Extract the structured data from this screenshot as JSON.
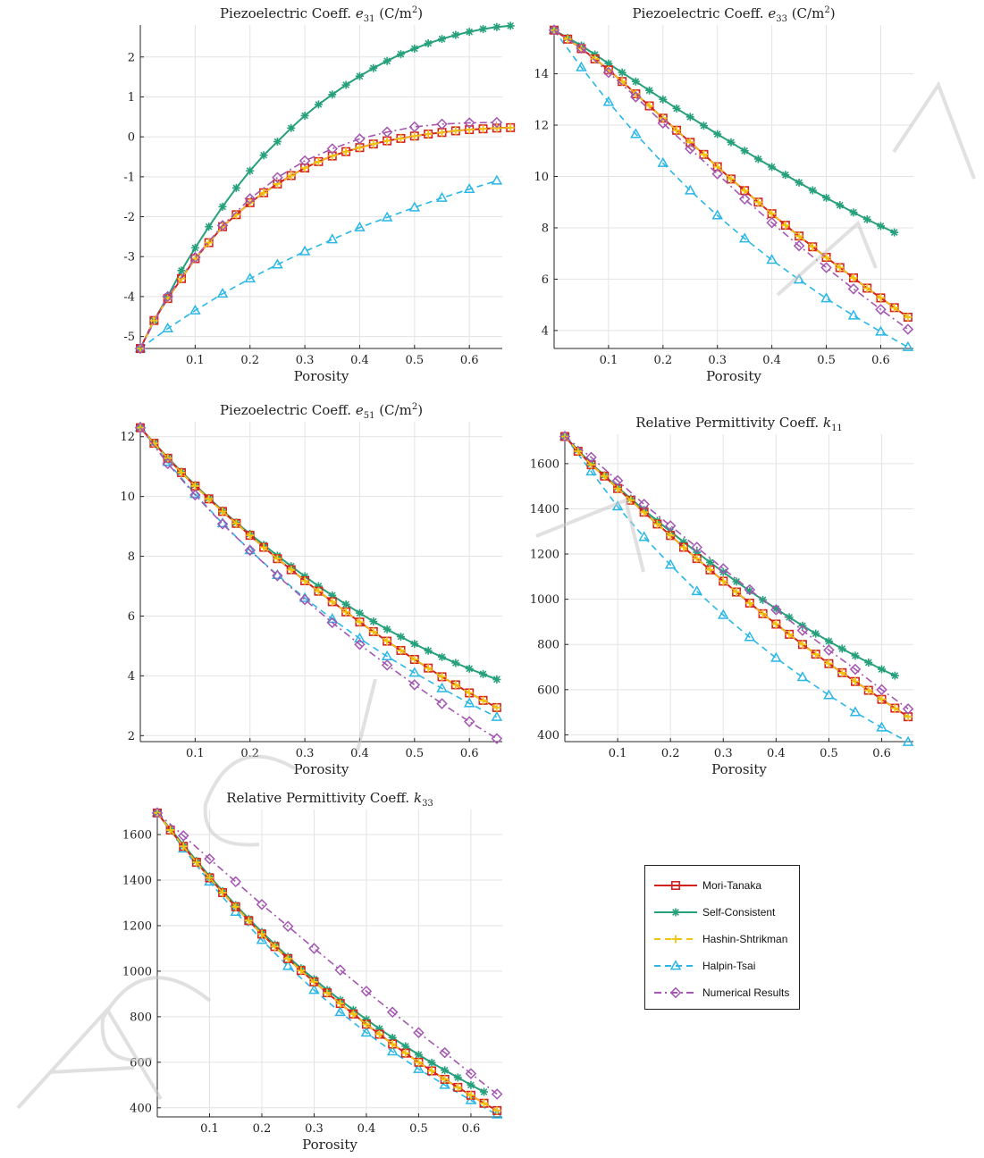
{
  "colors": {
    "mori_tanaka": "#d4231e",
    "self_consistent": "#27a07c",
    "hashin_shtrikman": "#f1c40f",
    "halpin_tsai": "#2ab7e6",
    "numerical": "#a357b0",
    "watermark": "#c8c8c8"
  },
  "watermark_text": "ACCEPTED MANUSCRIPT",
  "legend": [
    {
      "name": "Mori-Tanaka",
      "color": "#d4231e",
      "marker": "square",
      "dash": "solid"
    },
    {
      "name": "Self-Consistent",
      "color": "#27a07c",
      "marker": "asterisk",
      "dash": "solid"
    },
    {
      "name": "Hashin-Shtrikman",
      "color": "#f1c40f",
      "marker": "plus",
      "dash": "dashed"
    },
    {
      "name": "Halpin-Tsai",
      "color": "#2ab7e6",
      "marker": "triangle",
      "dash": "dashed"
    },
    {
      "name": "Numerical Results",
      "color": "#a357b0",
      "marker": "diamond",
      "dash": "dashdot"
    }
  ],
  "chart_data": [
    {
      "type": "line",
      "title_main": "Piezoelectric Coeff.",
      "title_symbol": "e",
      "title_sub": "31",
      "title_unit": "(C/m",
      "title_unit_sup": "2",
      "title_unit_close": ")",
      "xlabel": "Porosity",
      "xlim": [
        0,
        0.66
      ],
      "ylim": [
        -5.3,
        2.8
      ],
      "xticks": [
        0.1,
        0.2,
        0.3,
        0.4,
        0.5,
        0.6
      ],
      "yticks": [
        -5,
        -4,
        -3,
        -2,
        -1,
        0,
        1,
        2
      ],
      "xtick_labels": [
        "0.1",
        "0.2",
        "0.3",
        "0.4",
        "0.5",
        "0.6"
      ],
      "ytick_labels": [
        "-5",
        "-4",
        "-3",
        "-2",
        "-1",
        "0",
        "1",
        "2"
      ],
      "grid": true,
      "series": [
        {
          "name": "Mori-Tanaka",
          "x_step": 0.025,
          "y": [
            -5.3,
            -4.6,
            -4.05,
            -3.55,
            -3.05,
            -2.65,
            -2.25,
            -1.95,
            -1.65,
            -1.4,
            -1.18,
            -0.97,
            -0.78,
            -0.62,
            -0.48,
            -0.37,
            -0.27,
            -0.18,
            -0.1,
            -0.04,
            0.02,
            0.07,
            0.11,
            0.15,
            0.18,
            0.2,
            0.22,
            0.23
          ]
        },
        {
          "name": "Self-Consistent",
          "x_step": 0.025,
          "y": [
            -5.3,
            -4.6,
            -4.0,
            -3.35,
            -2.78,
            -2.25,
            -1.75,
            -1.28,
            -0.85,
            -0.46,
            -0.12,
            0.22,
            0.53,
            0.81,
            1.06,
            1.3,
            1.52,
            1.72,
            1.9,
            2.07,
            2.21,
            2.34,
            2.45,
            2.55,
            2.63,
            2.7,
            2.75,
            2.78
          ]
        },
        {
          "name": "Hashin-Shtrikman",
          "x_step": 0.025,
          "y": [
            -5.3,
            -4.6,
            -4.05,
            -3.55,
            -3.05,
            -2.65,
            -2.25,
            -1.95,
            -1.65,
            -1.4,
            -1.18,
            -0.97,
            -0.78,
            -0.62,
            -0.48,
            -0.37,
            -0.27,
            -0.18,
            -0.1,
            -0.04,
            0.02,
            0.07,
            0.11,
            0.15,
            0.18,
            0.2,
            0.22,
            0.23
          ]
        },
        {
          "name": "Halpin-Tsai",
          "x_step": 0.05,
          "y": [
            -5.3,
            -4.8,
            -4.35,
            -3.93,
            -3.55,
            -3.2,
            -2.87,
            -2.57,
            -2.27,
            -2.02,
            -1.77,
            -1.53,
            -1.31,
            -1.1
          ]
        },
        {
          "name": "Numerical Results",
          "x_step": 0.05,
          "y": [
            -5.3,
            -4.0,
            -3.02,
            -2.22,
            -1.55,
            -1.02,
            -0.6,
            -0.3,
            -0.05,
            0.12,
            0.25,
            0.32,
            0.35,
            0.36
          ]
        }
      ]
    },
    {
      "type": "line",
      "title_main": "Piezoelectric Coeff.",
      "title_symbol": "e",
      "title_sub": "33",
      "title_unit": "(C/m",
      "title_unit_sup": "2",
      "title_unit_close": ")",
      "xlabel": "Porosity",
      "xlim": [
        0,
        0.66
      ],
      "ylim": [
        3.3,
        15.9
      ],
      "xticks": [
        0.1,
        0.2,
        0.3,
        0.4,
        0.5,
        0.6
      ],
      "yticks": [
        4,
        6,
        8,
        10,
        12,
        14
      ],
      "xtick_labels": [
        "0.1",
        "0.2",
        "0.3",
        "0.4",
        "0.5",
        "0.6"
      ],
      "ytick_labels": [
        "4",
        "6",
        "8",
        "10",
        "12",
        "14"
      ],
      "grid": true,
      "series": [
        {
          "name": "Mori-Tanaka",
          "x_step": 0.025,
          "y": [
            15.7,
            15.35,
            14.98,
            14.58,
            14.15,
            13.7,
            13.22,
            12.75,
            12.27,
            11.8,
            11.33,
            10.86,
            10.38,
            9.9,
            9.45,
            9.0,
            8.55,
            8.1,
            7.68,
            7.26,
            6.85,
            6.45,
            6.05,
            5.65,
            5.27,
            4.89,
            4.52
          ]
        },
        {
          "name": "Self-Consistent",
          "x_step": 0.025,
          "y": [
            15.7,
            15.4,
            15.1,
            14.75,
            14.4,
            14.05,
            13.7,
            13.35,
            13.0,
            12.65,
            12.32,
            11.98,
            11.65,
            11.33,
            11.0,
            10.68,
            10.37,
            10.06,
            9.76,
            9.46,
            9.17,
            8.88,
            8.6,
            8.33,
            8.07,
            7.82
          ]
        },
        {
          "name": "Hashin-Shtrikman",
          "x_step": 0.025,
          "y": [
            15.7,
            15.35,
            14.98,
            14.58,
            14.15,
            13.7,
            13.22,
            12.75,
            12.27,
            11.8,
            11.33,
            10.86,
            10.38,
            9.9,
            9.45,
            9.0,
            8.55,
            8.1,
            7.68,
            7.26,
            6.85,
            6.45,
            6.05,
            5.65,
            5.27,
            4.89,
            4.52
          ]
        },
        {
          "name": "Halpin-Tsai",
          "x_step": 0.05,
          "y": [
            15.7,
            14.25,
            12.9,
            11.65,
            10.52,
            9.45,
            8.48,
            7.58,
            6.75,
            5.98,
            5.25,
            4.58,
            3.95,
            3.35
          ]
        },
        {
          "name": "Numerical Results",
          "x_step": 0.05,
          "y": [
            15.7,
            15.0,
            14.05,
            13.1,
            12.08,
            11.08,
            10.1,
            9.12,
            8.2,
            7.3,
            6.45,
            5.62,
            4.82,
            4.05
          ]
        }
      ]
    },
    {
      "type": "line",
      "title_main": "Piezoelectric Coeff.",
      "title_symbol": "e",
      "title_sub": "51",
      "title_unit": "(C/m",
      "title_unit_sup": "2",
      "title_unit_close": ")",
      "xlabel": "Porosity",
      "xlim": [
        0,
        0.66
      ],
      "ylim": [
        1.8,
        12.5
      ],
      "xticks": [
        0.1,
        0.2,
        0.3,
        0.4,
        0.5,
        0.6
      ],
      "yticks": [
        2,
        4,
        6,
        8,
        10,
        12
      ],
      "xtick_labels": [
        "0.1",
        "0.2",
        "0.3",
        "0.4",
        "0.5",
        "0.6"
      ],
      "ytick_labels": [
        "2",
        "4",
        "6",
        "8",
        "10",
        "12"
      ],
      "grid": true,
      "series": [
        {
          "name": "Mori-Tanaka",
          "x_step": 0.025,
          "y": [
            12.3,
            11.78,
            11.28,
            10.8,
            10.35,
            9.92,
            9.5,
            9.1,
            8.7,
            8.3,
            7.92,
            7.55,
            7.18,
            6.83,
            6.48,
            6.14,
            5.8,
            5.48,
            5.16,
            4.85,
            4.55,
            4.26,
            3.97,
            3.7,
            3.43,
            3.18,
            2.94
          ]
        },
        {
          "name": "Self-Consistent",
          "x_step": 0.025,
          "y": [
            12.3,
            11.8,
            11.3,
            10.83,
            10.38,
            9.95,
            9.53,
            9.13,
            8.75,
            8.38,
            8.02,
            7.67,
            7.33,
            7.0,
            6.69,
            6.39,
            6.1,
            5.82,
            5.56,
            5.31,
            5.07,
            4.84,
            4.63,
            4.43,
            4.24,
            4.06,
            3.88
          ]
        },
        {
          "name": "Hashin-Shtrikman",
          "x_step": 0.025,
          "y": [
            12.3,
            11.78,
            11.28,
            10.8,
            10.35,
            9.92,
            9.5,
            9.1,
            8.7,
            8.3,
            7.92,
            7.55,
            7.18,
            6.83,
            6.48,
            6.14,
            5.8,
            5.48,
            5.16,
            4.85,
            4.55,
            4.26,
            3.97,
            3.7,
            3.43,
            3.18,
            2.94
          ]
        },
        {
          "name": "Halpin-Tsai",
          "x_step": 0.05,
          "y": [
            12.3,
            11.15,
            10.08,
            9.1,
            8.2,
            7.37,
            6.6,
            5.9,
            5.25,
            4.65,
            4.1,
            3.58,
            3.08,
            2.62
          ]
        },
        {
          "name": "Numerical Results",
          "x_step": 0.05,
          "y": [
            12.3,
            11.1,
            10.05,
            9.08,
            8.2,
            7.35,
            6.55,
            5.78,
            5.05,
            4.36,
            3.7,
            3.07,
            2.47,
            1.9
          ]
        }
      ]
    },
    {
      "type": "line",
      "title_main": "Relative Permittivity Coeff.",
      "title_symbol": "k",
      "title_sub": "11",
      "title_unit": "",
      "title_unit_sup": "",
      "title_unit_close": "",
      "xlabel": "Porosity",
      "xlim": [
        0,
        0.66
      ],
      "ylim": [
        370,
        1730
      ],
      "xticks": [
        0.1,
        0.2,
        0.3,
        0.4,
        0.5,
        0.6
      ],
      "yticks": [
        400,
        600,
        800,
        1000,
        1200,
        1400,
        1600
      ],
      "xtick_labels": [
        "0.1",
        "0.2",
        "0.3",
        "0.4",
        "0.5",
        "0.6"
      ],
      "ytick_labels": [
        "400",
        "600",
        "800",
        "1000",
        "1200",
        "1400",
        "1600"
      ],
      "grid": true,
      "series": [
        {
          "name": "Mori-Tanaka",
          "x_step": 0.025,
          "y": [
            1720,
            1655,
            1595,
            1545,
            1490,
            1438,
            1385,
            1333,
            1282,
            1230,
            1180,
            1130,
            1080,
            1032,
            983,
            936,
            890,
            845,
            800,
            757,
            715,
            675,
            636,
            597,
            557,
            518,
            480
          ]
        },
        {
          "name": "Self-Consistent",
          "x_step": 0.025,
          "y": [
            1720,
            1660,
            1600,
            1548,
            1495,
            1445,
            1395,
            1347,
            1300,
            1253,
            1208,
            1163,
            1120,
            1078,
            1037,
            997,
            958,
            920,
            883,
            848,
            814,
            781,
            750,
            720,
            690,
            662
          ]
        },
        {
          "name": "Hashin-Shtrikman",
          "x_step": 0.025,
          "y": [
            1720,
            1655,
            1595,
            1545,
            1490,
            1438,
            1385,
            1333,
            1282,
            1230,
            1180,
            1130,
            1080,
            1032,
            983,
            936,
            890,
            845,
            800,
            757,
            715,
            675,
            636,
            597,
            557,
            518,
            480
          ]
        },
        {
          "name": "Halpin-Tsai",
          "x_step": 0.05,
          "y": [
            1720,
            1565,
            1410,
            1275,
            1152,
            1035,
            930,
            832,
            740,
            655,
            575,
            500,
            432,
            368
          ]
        },
        {
          "name": "Numerical Results",
          "x_step": 0.05,
          "y": [
            1720,
            1628,
            1525,
            1420,
            1325,
            1230,
            1135,
            1042,
            953,
            862,
            775,
            690,
            600,
            515
          ]
        }
      ]
    },
    {
      "type": "line",
      "title_main": "Relative Permittivity Coeff.",
      "title_symbol": "k",
      "title_sub": "33",
      "title_unit": "",
      "title_unit_sup": "",
      "title_unit_close": "",
      "xlabel": "Porosity",
      "xlim": [
        0,
        0.66
      ],
      "ylim": [
        360,
        1710
      ],
      "xticks": [
        0.1,
        0.2,
        0.3,
        0.4,
        0.5,
        0.6
      ],
      "yticks": [
        400,
        600,
        800,
        1000,
        1200,
        1400,
        1600
      ],
      "xtick_labels": [
        "0.1",
        "0.2",
        "0.3",
        "0.4",
        "0.5",
        "0.6"
      ],
      "ytick_labels": [
        "400",
        "600",
        "800",
        "1000",
        "1200",
        "1400",
        "1600"
      ],
      "grid": true,
      "series": [
        {
          "name": "Mori-Tanaka",
          "x_step": 0.025,
          "y": [
            1695,
            1620,
            1548,
            1478,
            1410,
            1345,
            1283,
            1222,
            1163,
            1108,
            1055,
            1003,
            953,
            905,
            858,
            812,
            767,
            723,
            680,
            640,
            600,
            562,
            525,
            490,
            455,
            420,
            388
          ]
        },
        {
          "name": "Self-Consistent",
          "x_step": 0.025,
          "y": [
            1695,
            1625,
            1555,
            1485,
            1417,
            1352,
            1290,
            1230,
            1172,
            1117,
            1064,
            1013,
            965,
            918,
            873,
            830,
            788,
            747,
            708,
            670,
            633,
            598,
            565,
            533,
            500,
            470
          ]
        },
        {
          "name": "Hashin-Shtrikman",
          "x_step": 0.025,
          "y": [
            1695,
            1620,
            1548,
            1478,
            1410,
            1345,
            1283,
            1222,
            1163,
            1108,
            1055,
            1003,
            953,
            905,
            858,
            812,
            767,
            723,
            680,
            640,
            600,
            562,
            525,
            490,
            455,
            420,
            388
          ]
        },
        {
          "name": "Halpin-Tsai",
          "x_step": 0.05,
          "y": [
            1695,
            1538,
            1393,
            1260,
            1137,
            1022,
            917,
            820,
            730,
            647,
            570,
            500,
            433,
            370
          ]
        },
        {
          "name": "Numerical Results",
          "x_step": 0.05,
          "y": [
            1695,
            1595,
            1493,
            1393,
            1293,
            1197,
            1100,
            1005,
            912,
            820,
            730,
            642,
            550,
            460
          ]
        }
      ]
    }
  ]
}
